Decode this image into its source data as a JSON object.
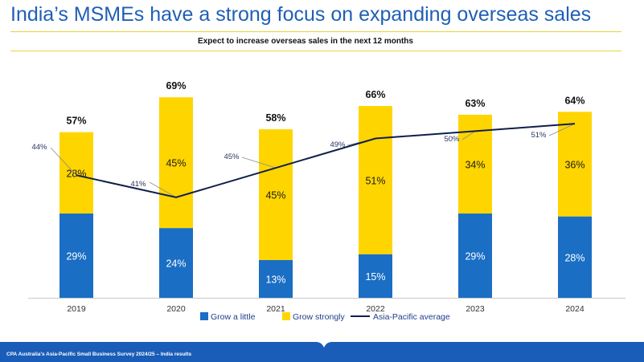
{
  "page": {
    "title": "India’s MSMEs have a strong focus on expanding overseas sales",
    "footer": "CPA Australia’s Asia-Pacific Small Business Survey 2024/25 – India results"
  },
  "colors": {
    "grow_little": "#1a6ec4",
    "grow_strongly": "#ffd500",
    "average_line": "#0f1f4b",
    "title": "#1f5fb5",
    "footer": "#1a5db8"
  },
  "chart_data": {
    "type": "bar",
    "stacked": true,
    "title": "Expect to increase overseas sales in the next 12 months",
    "categories": [
      "2019",
      "2020",
      "2021",
      "2022",
      "2023",
      "2024"
    ],
    "series": [
      {
        "name": "Grow a little",
        "type": "bar",
        "values": [
          29,
          24,
          13,
          15,
          29,
          28
        ]
      },
      {
        "name": "Grow strongly",
        "type": "bar",
        "values": [
          28,
          45,
          45,
          51,
          34,
          36
        ]
      },
      {
        "name": "Asia-Pacific average",
        "type": "line",
        "values": [
          44,
          41,
          45,
          49,
          50,
          51
        ]
      }
    ],
    "totals": [
      57,
      69,
      58,
      66,
      63,
      64
    ],
    "unit": "%",
    "ylim": [
      0,
      70
    ],
    "grid": false,
    "legend": "bottom"
  }
}
